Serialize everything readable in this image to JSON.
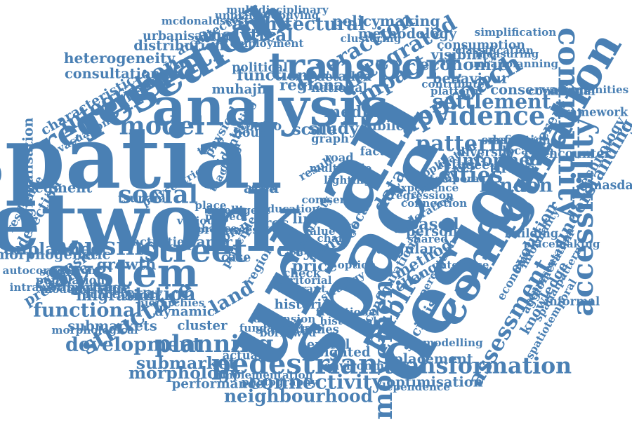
{
  "color": "#4a80b4",
  "words": [
    {
      "text": "urban",
      "weight": 1.0,
      "rotation": -60
    },
    {
      "text": "spatial",
      "weight": 0.95,
      "rotation": 0
    },
    {
      "text": "network",
      "weight": 0.9,
      "rotation": 0
    },
    {
      "text": "space",
      "weight": 0.9,
      "rotation": -60
    },
    {
      "text": "design",
      "weight": 0.85,
      "rotation": -60
    },
    {
      "text": "analysis",
      "weight": 0.6,
      "rotation": 0
    },
    {
      "text": "research",
      "weight": 0.55,
      "rotation": -30
    },
    {
      "text": "configuration",
      "weight": 0.5,
      "rotation": -60
    },
    {
      "text": "system",
      "weight": 0.45,
      "rotation": 0
    },
    {
      "text": "regeneration",
      "weight": 0.4,
      "rotation": -30
    },
    {
      "text": "transport",
      "weight": 0.42,
      "rotation": 0
    },
    {
      "text": "street",
      "weight": 0.38,
      "rotation": 0
    },
    {
      "text": "community",
      "weight": 0.35,
      "rotation": 90
    },
    {
      "text": "accessibility",
      "weight": 0.33,
      "rotation": -90
    },
    {
      "text": "pedestrian",
      "weight": 0.32,
      "rotation": 0
    },
    {
      "text": "movement",
      "weight": 0.3,
      "rotation": -90
    },
    {
      "text": "public",
      "weight": 0.3,
      "rotation": -60
    },
    {
      "text": "evidence",
      "weight": 0.3,
      "rotation": 0
    },
    {
      "text": "approach",
      "weight": 0.3,
      "rotation": -30
    },
    {
      "text": "housing",
      "weight": 0.28,
      "rotation": 0
    },
    {
      "text": "social",
      "weight": 0.28,
      "rotation": 0
    },
    {
      "text": "model",
      "weight": 0.28,
      "rotation": 0
    },
    {
      "text": "structure",
      "weight": 0.27,
      "rotation": -30
    },
    {
      "text": "planning",
      "weight": 0.27,
      "rotation": 0
    },
    {
      "text": "transformation",
      "weight": 0.25,
      "rotation": 0
    },
    {
      "text": "assessment",
      "weight": 0.25,
      "rotation": -60
    },
    {
      "text": "impact",
      "weight": 0.24,
      "rotation": -30
    },
    {
      "text": "integrated",
      "weight": 0.24,
      "rotation": -30
    },
    {
      "text": "interaction",
      "weight": 0.24,
      "rotation": -30
    },
    {
      "text": "integration",
      "weight": 0.24,
      "rotation": -30
    },
    {
      "text": "pattern",
      "weight": 0.24,
      "rotation": 0
    },
    {
      "text": "cities",
      "weight": 0.24,
      "rotation": 0
    },
    {
      "text": "settlement",
      "weight": 0.22,
      "rotation": 0
    },
    {
      "text": "connectivity",
      "weight": 0.22,
      "rotation": 0
    },
    {
      "text": "london",
      "weight": 0.21,
      "rotation": 0
    },
    {
      "text": "development",
      "weight": 0.21,
      "rotation": 0
    },
    {
      "text": "functional",
      "weight": 0.21,
      "rotation": 0
    },
    {
      "text": "land",
      "weight": 0.21,
      "rotation": -30
    },
    {
      "text": "data",
      "weight": 0.21,
      "rotation": -60
    },
    {
      "text": "city",
      "weight": 0.2,
      "rotation": 0
    },
    {
      "text": "station",
      "weight": 0.2,
      "rotation": 0
    },
    {
      "text": "architectural",
      "weight": 0.2,
      "rotation": 0
    },
    {
      "text": "analytical",
      "weight": 0.19,
      "rotation": 0
    },
    {
      "text": "understanding",
      "weight": 0.19,
      "rotation": -60
    },
    {
      "text": "neighbourhood",
      "weight": 0.19,
      "rotation": 0
    },
    {
      "text": "submarket",
      "weight": 0.18,
      "rotation": 0
    },
    {
      "text": "morphology",
      "weight": 0.18,
      "rotation": 0
    },
    {
      "text": "economic",
      "weight": 0.18,
      "rotation": 0
    },
    {
      "text": "informed",
      "weight": 0.18,
      "rotation": 0
    },
    {
      "text": "unplanned",
      "weight": 0.18,
      "rotation": 0
    },
    {
      "text": "study",
      "weight": 0.18,
      "rotation": 0
    },
    {
      "text": "scale",
      "weight": 0.17,
      "rotation": 0
    },
    {
      "text": "based",
      "weight": 0.17,
      "rotation": 0
    },
    {
      "text": "media",
      "weight": 0.17,
      "rotation": 0
    },
    {
      "text": "price",
      "weight": 0.17,
      "rotation": 0
    },
    {
      "text": "function",
      "weight": 0.16,
      "rotation": 0
    },
    {
      "text": "method",
      "weight": 0.16,
      "rotation": -30
    },
    {
      "text": "centre",
      "weight": 0.16,
      "rotation": -30
    },
    {
      "text": "growth",
      "weight": 0.16,
      "rotation": 0
    },
    {
      "text": "migration",
      "weight": 0.16,
      "rotation": 0
    },
    {
      "text": "regional",
      "weight": 0.16,
      "rotation": 0
    },
    {
      "text": "evolution",
      "weight": 0.16,
      "rotation": -60
    },
    {
      "text": "different",
      "weight": 0.16,
      "rotation": -60
    },
    {
      "text": "extension",
      "weight": 0.15,
      "rotation": -30
    },
    {
      "text": "presence",
      "weight": 0.15,
      "rotation": -30
    },
    {
      "text": "hedonic",
      "weight": 0.15,
      "rotation": -30
    },
    {
      "text": "area",
      "weight": 0.15,
      "rotation": 0
    },
    {
      "text": "paper",
      "weight": 0.15,
      "rotation": 0
    },
    {
      "text": "detection",
      "weight": 0.15,
      "rotation": -60
    },
    {
      "text": "policymaking",
      "weight": 0.15,
      "rotation": 0
    },
    {
      "text": "heterogeneity",
      "weight": 0.15,
      "rotation": 0
    },
    {
      "text": "distribution",
      "weight": 0.14,
      "rotation": 0
    },
    {
      "text": "consultation",
      "weight": 0.14,
      "rotation": 0
    },
    {
      "text": "methodology",
      "weight": 0.14,
      "rotation": 0
    },
    {
      "text": "visibility",
      "weight": 0.14,
      "rotation": 0
    },
    {
      "text": "behaviour",
      "weight": 0.14,
      "rotation": 0
    },
    {
      "text": "conservation",
      "weight": 0.14,
      "rotation": 0
    },
    {
      "text": "tirana",
      "weight": 0.14,
      "rotation": 0
    },
    {
      "text": "angular",
      "weight": 0.14,
      "rotation": 0
    },
    {
      "text": "change",
      "weight": 0.14,
      "rotation": -30
    },
    {
      "text": "person",
      "weight": 0.14,
      "rotation": 0
    },
    {
      "text": "proc",
      "weight": 0.14,
      "rotation": 0
    },
    {
      "text": "line",
      "weight": 0.14,
      "rotation": 0
    },
    {
      "text": "local",
      "weight": 0.14,
      "rotation": -60
    },
    {
      "text": "optimisation",
      "weight": 0.14,
      "rotation": 0
    },
    {
      "text": "placement",
      "weight": 0.14,
      "rotation": 0
    },
    {
      "text": "socialist",
      "weight": 0.14,
      "rotation": -60
    },
    {
      "text": "submarkets",
      "weight": 0.14,
      "rotation": 0
    },
    {
      "text": "segment",
      "weight": 0.14,
      "rotation": 0
    },
    {
      "text": "characteristic",
      "weight": 0.14,
      "rotation": -30
    },
    {
      "text": "heritage",
      "weight": 0.14,
      "rotation": 0
    },
    {
      "text": "regionalisation",
      "weight": 0.14,
      "rotation": -90
    },
    {
      "text": "morphogenetic",
      "weight": 0.14,
      "rotation": 0
    },
    {
      "text": "knowledge",
      "weight": 0.14,
      "rotation": -60
    },
    {
      "text": "technology",
      "weight": 0.14,
      "rotation": -60
    },
    {
      "text": "performance",
      "weight": 0.13,
      "rotation": 0
    },
    {
      "text": "cluster",
      "weight": 0.13,
      "rotation": 0
    },
    {
      "text": "dynamic",
      "weight": 0.13,
      "rotation": 0
    },
    {
      "text": "historic",
      "weight": 0.13,
      "rotation": 0
    },
    {
      "text": "weighted",
      "weight": 0.13,
      "rotation": 0
    },
    {
      "text": "central",
      "weight": 0.13,
      "rotation": 0
    },
    {
      "text": "science",
      "weight": 0.13,
      "rotation": 0
    },
    {
      "text": "jubilee",
      "weight": 0.13,
      "rotation": 0
    },
    {
      "text": "spatio",
      "weight": 0.13,
      "rotation": 0
    },
    {
      "text": "muhajir",
      "weight": 0.13,
      "rotation": 0
    },
    {
      "text": "political",
      "weight": 0.12,
      "rotation": 0
    },
    {
      "text": "identity",
      "weight": 0.12,
      "rotation": -60
    },
    {
      "text": "house",
      "weight": 0.12,
      "rotation": 0
    },
    {
      "text": "national",
      "weight": 0.12,
      "rotation": 0
    },
    {
      "text": "detailed",
      "weight": 0.12,
      "rotation": 0
    },
    {
      "text": "physical",
      "weight": 0.12,
      "rotation": -60
    },
    {
      "text": "consumption",
      "weight": 0.12,
      "rotation": 0
    },
    {
      "text": "urbanisation",
      "weight": 0.12,
      "rotation": 0
    },
    {
      "text": "architecture",
      "weight": 0.12,
      "rotation": -30
    },
    {
      "text": "diversity",
      "weight": 0.12,
      "rotation": 0
    },
    {
      "text": "refugee",
      "weight": 0.12,
      "rotation": 0
    },
    {
      "text": "encounter",
      "weight": 0.12,
      "rotation": 0
    },
    {
      "text": "masdar",
      "weight": 0.12,
      "rotation": 0
    },
    {
      "text": "configurational",
      "weight": 0.12,
      "rotation": -60
    },
    {
      "text": "case",
      "weight": 0.12,
      "rotation": 0
    },
    {
      "text": "region",
      "weight": 0.12,
      "rotation": -60
    },
    {
      "text": "plan",
      "weight": 0.12,
      "rotation": -30
    },
    {
      "text": "studies",
      "weight": 0.11,
      "rotation": 0
    },
    {
      "text": "processes",
      "weight": 0.11,
      "rotation": 0
    },
    {
      "text": "principle",
      "weight": 0.11,
      "rotation": -60
    },
    {
      "text": "check",
      "weight": 0.11,
      "rotation": 0
    },
    {
      "text": "road",
      "weight": 0.11,
      "rotation": 0
    },
    {
      "text": "graph",
      "weight": 0.11,
      "rotation": 0
    },
    {
      "text": "time",
      "weight": 0.11,
      "rotation": -30
    },
    {
      "text": "result",
      "weight": 0.11,
      "rotation": -30
    },
    {
      "text": "actual",
      "weight": 0.11,
      "rotation": 0
    },
    {
      "text": "environment",
      "weight": 0.11,
      "rotation": 0
    },
    {
      "text": "factor",
      "weight": 0.11,
      "rotation": 0
    },
    {
      "text": "smart",
      "weight": 0.11,
      "rotation": 0
    },
    {
      "text": "location",
      "weight": 0.11,
      "rotation": 0
    },
    {
      "text": "informal",
      "weight": 0.11,
      "rotation": 0
    },
    {
      "text": "definition",
      "weight": 0.11,
      "rotation": 0
    },
    {
      "text": "communal",
      "weight": 0.11,
      "rotation": 0
    },
    {
      "text": "framework",
      "weight": 0.11,
      "rotation": 0
    },
    {
      "text": "building",
      "weight": 0.11,
      "rotation": 0
    },
    {
      "text": "economy",
      "weight": 0.11,
      "rotation": -60
    },
    {
      "text": "agglomeration",
      "weight": 0.11,
      "rotation": -60
    },
    {
      "text": "tsunami",
      "weight": 0.11,
      "rotation": 0
    },
    {
      "text": "activities",
      "weight": 0.11,
      "rotation": 0
    },
    {
      "text": "population",
      "weight": 0.11,
      "rotation": 0
    },
    {
      "text": "resilience",
      "weight": 0.11,
      "rotation": -60
    },
    {
      "text": "autocorrelation",
      "weight": 0.1,
      "rotation": 0
    },
    {
      "text": "intrametropolitan",
      "weight": 0.1,
      "rotation": 0
    },
    {
      "text": "modernisation",
      "weight": 0.1,
      "rotation": 0
    },
    {
      "text": "functionality",
      "weight": 0.1,
      "rotation": 0
    },
    {
      "text": "hierarchies",
      "weight": 0.1,
      "rotation": 0
    },
    {
      "text": "morphological",
      "weight": 0.1,
      "rotation": 0
    },
    {
      "text": "implementation",
      "weight": 0.1,
      "rotation": 0
    },
    {
      "text": "photography",
      "weight": 0.1,
      "rotation": 0
    },
    {
      "text": "dependence",
      "weight": 0.1,
      "rotation": 0
    },
    {
      "text": "modelling",
      "weight": 0.1,
      "rotation": 0
    },
    {
      "text": "placemaking",
      "weight": 0.1,
      "rotation": 0
    },
    {
      "text": "urbanplanning",
      "weight": 0.1,
      "rotation": 0
    },
    {
      "text": "communities",
      "weight": 0.1,
      "rotation": 0
    },
    {
      "text": "simplification",
      "weight": 0.1,
      "rotation": 0
    },
    {
      "text": "classification",
      "weight": 0.1,
      "rotation": 0
    },
    {
      "text": "measuring",
      "weight": 0.1,
      "rotation": 0
    },
    {
      "text": "mcdonaldssystem",
      "weight": 0.1,
      "rotation": 0
    },
    {
      "text": "unplannedbuying",
      "weight": 0.1,
      "rotation": 0
    },
    {
      "text": "multidisciplinary",
      "weight": 0.1,
      "rotation": 0
    },
    {
      "text": "employment",
      "weight": 0.1,
      "rotation": 0
    },
    {
      "text": "spatiotemporal",
      "weight": 0.1,
      "rotation": -60
    },
    {
      "text": "spatialpattern",
      "weight": 0.1,
      "rotation": -60
    },
    {
      "text": "representation",
      "weight": 0.1,
      "rotation": -60
    },
    {
      "text": "informality",
      "weight": 0.1,
      "rotation": -60
    },
    {
      "text": "evacuation",
      "weight": 0.1,
      "rotation": -30
    },
    {
      "text": "testing",
      "weight": 0.1,
      "rotation": -60
    },
    {
      "text": "teaching",
      "weight": 0.1,
      "rotation": -60
    },
    {
      "text": "china",
      "weight": 0.1,
      "rotation": -60
    },
    {
      "text": "face",
      "weight": 0.1,
      "rotation": 0
    },
    {
      "text": "place",
      "weight": 0.1,
      "rotation": 0
    },
    {
      "text": "various",
      "weight": 0.1,
      "rotation": 0
    },
    {
      "text": "project",
      "weight": 0.1,
      "rotation": 0
    },
    {
      "text": "enhance",
      "weight": 0.1,
      "rotation": 0
    },
    {
      "text": "intelligent",
      "weight": 0.1,
      "rotation": 0
    },
    {
      "text": "education",
      "weight": 0.1,
      "rotation": 0
    },
    {
      "text": "centrality",
      "weight": 0.1,
      "rotation": -60
    },
    {
      "text": "core",
      "weight": 0.1,
      "rotation": 0
    },
    {
      "text": "user",
      "weight": 0.1,
      "rotation": 0
    },
    {
      "text": "more",
      "weight": 0.1,
      "rotation": 0
    },
    {
      "text": "value",
      "weight": 0.1,
      "rotation": 0
    },
    {
      "text": "chain",
      "weight": 0.1,
      "rotation": 0
    },
    {
      "text": "safety",
      "weight": 0.1,
      "rotation": 0
    },
    {
      "text": "option",
      "weight": 0.1,
      "rotation": 0
    },
    {
      "text": "strategy",
      "weight": 0.1,
      "rotation": -30
    },
    {
      "text": "historical",
      "weight": 0.1,
      "rotation": 0
    },
    {
      "text": "traditional",
      "weight": 0.1,
      "rotation": 0
    },
    {
      "text": "dimension",
      "weight": 0.1,
      "rotation": 0
    },
    {
      "text": "borrowed",
      "weight": 0.1,
      "rotation": 0
    },
    {
      "text": "fundamental",
      "weight": 0.1,
      "rotation": 0
    },
    {
      "text": "territorial",
      "weight": 0.1,
      "rotation": 0
    },
    {
      "text": "migrant",
      "weight": 0.1,
      "rotation": 0
    },
    {
      "text": "clustering",
      "weight": 0.1,
      "rotation": 0
    },
    {
      "text": "platform",
      "weight": 0.1,
      "rotation": 0
    },
    {
      "text": "contribute",
      "weight": 0.1,
      "rotation": 0
    },
    {
      "text": "application",
      "weight": 0.1,
      "rotation": -30
    },
    {
      "text": "contemporary",
      "weight": 0.1,
      "rotation": -30
    },
    {
      "text": "experience",
      "weight": 0.1,
      "rotation": 0
    },
    {
      "text": "regression",
      "weight": 0.1,
      "rotation": 0
    },
    {
      "text": "shared",
      "weight": 0.1,
      "rotation": 0
    },
    {
      "text": "lighting",
      "weight": 0.1,
      "rotation": 0
    },
    {
      "text": "multiscale",
      "weight": 0.1,
      "rotation": 0
    },
    {
      "text": "connection",
      "weight": 0.1,
      "rotation": 0
    },
    {
      "text": "interface",
      "weight": 0.1,
      "rotation": 0
    },
    {
      "text": "temporal",
      "weight": 0.1,
      "rotation": 0
    },
    {
      "text": "exploration",
      "weight": 0.1,
      "rotation": -30
    },
    {
      "text": "perception",
      "weight": 0.1,
      "rotation": -60
    },
    {
      "text": "scalar",
      "weight": 0.1,
      "rotation": 0
    },
    {
      "text": "polycentric",
      "weight": 0.1,
      "rotation": -30
    },
    {
      "text": "analyse",
      "weight": 0.1,
      "rotation": -60
    },
    {
      "text": "relationship",
      "weight": 0.1,
      "rotation": 0
    },
    {
      "text": "prototype",
      "weight": 0.1,
      "rotation": 0
    }
  ]
}
